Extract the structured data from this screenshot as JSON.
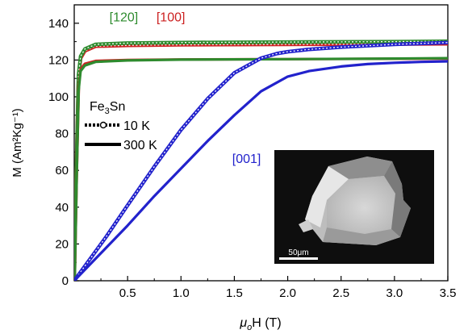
{
  "chart_data": {
    "type": "line",
    "xlabel_mu": "μ",
    "xlabel_sub": "o",
    "xlabel_rest": "H (T)",
    "ylabel": "M (Am²Kg⁻¹)",
    "xlim": [
      0,
      3.5
    ],
    "ylim": [
      0,
      150
    ],
    "x_ticks": [
      {
        "value": 0.5,
        "label": "0.5"
      },
      {
        "value": 1.0,
        "label": "1.0"
      },
      {
        "value": 1.5,
        "label": "1.5"
      },
      {
        "value": 2.0,
        "label": "2.0"
      },
      {
        "value": 2.5,
        "label": "2.5"
      },
      {
        "value": 3.0,
        "label": "3.0"
      },
      {
        "value": 3.5,
        "label": "3.5"
      }
    ],
    "y_ticks": [
      {
        "value": 0,
        "label": "0"
      },
      {
        "value": 20,
        "label": "20"
      },
      {
        "value": 40,
        "label": "40"
      },
      {
        "value": 60,
        "label": "60"
      },
      {
        "value": 80,
        "label": "80"
      },
      {
        "value": 100,
        "label": "100"
      },
      {
        "value": 120,
        "label": "120"
      },
      {
        "value": 140,
        "label": "140"
      }
    ],
    "grid": false,
    "annotations": {
      "label_120": {
        "text": "[120]",
        "color": "#2e8b2e",
        "x": 0.33,
        "y": 141
      },
      "label_100": {
        "text": "[100]",
        "color": "#cc2222",
        "x": 0.77,
        "y": 141
      },
      "label_001": {
        "text": "[001]",
        "color": "#2222cc",
        "x": 1.48,
        "y": 64
      }
    },
    "legend": {
      "title_base": "Fe",
      "title_sub": "3",
      "title_rest": "Sn",
      "entries": [
        {
          "label": "10 K",
          "style": "dotted-with-marker"
        },
        {
          "label": "300 K",
          "style": "solid"
        }
      ]
    },
    "series": [
      {
        "temperature": "10 K",
        "direction": "[100]",
        "color": "#cc2222",
        "style": "dotted",
        "x": [
          0,
          0.02,
          0.04,
          0.06,
          0.1,
          0.2,
          0.5,
          1.0,
          2.0,
          3.0,
          3.5
        ],
        "y": [
          0,
          60,
          110,
          121,
          125,
          127.5,
          128,
          128.3,
          128.5,
          128.7,
          128.8
        ]
      },
      {
        "temperature": "10 K",
        "direction": "[120]",
        "color": "#2e8b2e",
        "style": "dotted",
        "x": [
          0,
          0.02,
          0.04,
          0.06,
          0.1,
          0.2,
          0.5,
          1.0,
          2.0,
          3.0,
          3.5
        ],
        "y": [
          0,
          60,
          112,
          122,
          126,
          128.5,
          129.2,
          129.5,
          129.8,
          130,
          130.2
        ]
      },
      {
        "temperature": "300 K",
        "direction": "[100]",
        "color": "#cc2222",
        "style": "solid",
        "x": [
          0,
          0.02,
          0.04,
          0.06,
          0.1,
          0.2,
          0.5,
          1.0,
          2.0,
          3.0,
          3.5
        ],
        "y": [
          0,
          58,
          105,
          115,
          118,
          119.5,
          120,
          120.3,
          120.5,
          120.7,
          120.8
        ]
      },
      {
        "temperature": "300 K",
        "direction": "[120]",
        "color": "#2e8b2e",
        "style": "solid",
        "x": [
          0,
          0.02,
          0.04,
          0.06,
          0.1,
          0.2,
          0.5,
          1.0,
          2.0,
          3.0,
          3.5
        ],
        "y": [
          0,
          55,
          103,
          114,
          117,
          119,
          119.8,
          120.2,
          120.5,
          120.8,
          121
        ]
      },
      {
        "temperature": "10 K",
        "direction": "[001]",
        "color": "#2222cc",
        "style": "dotted",
        "x": [
          0,
          0.1,
          0.3,
          0.5,
          0.75,
          1.0,
          1.25,
          1.5,
          1.75,
          1.9,
          2.0,
          2.2,
          2.5,
          3.0,
          3.5
        ],
        "y": [
          0,
          8,
          24,
          41,
          62,
          82,
          99,
          113,
          121,
          123.5,
          124.5,
          125.8,
          127,
          128.5,
          129.5
        ]
      },
      {
        "temperature": "300 K",
        "direction": "[001]",
        "color": "#2222cc",
        "style": "solid",
        "x": [
          0,
          0.25,
          0.5,
          0.75,
          1.0,
          1.25,
          1.5,
          1.75,
          2.0,
          2.2,
          2.5,
          2.75,
          3.0,
          3.25,
          3.5
        ],
        "y": [
          0,
          15,
          30,
          46,
          61,
          76,
          90,
          103,
          111,
          114,
          116.5,
          117.8,
          118.5,
          119,
          119.3
        ]
      }
    ],
    "inset": {
      "kind": "micrograph",
      "scale_bar_label": "50μm"
    }
  }
}
